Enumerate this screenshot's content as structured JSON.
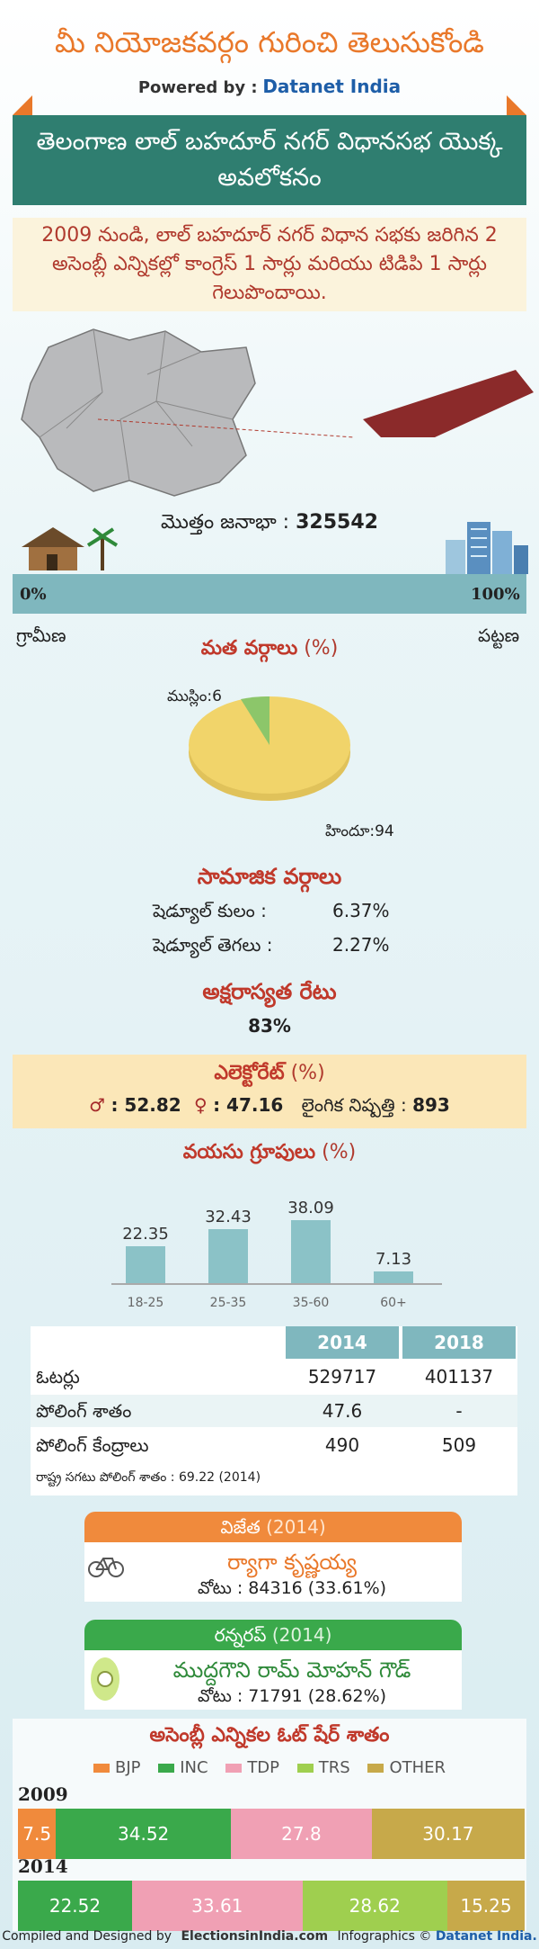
{
  "header": {
    "title": "మీ నియోజకవర్గం గురించి తెలుసుకోండి",
    "powered_by": "Powered by :",
    "brand": "Datanet India"
  },
  "banner": {
    "title": "తెలంగాణ లాల్ బహదూర్ నగర్ విధానసభ యొక్క అవలోకనం"
  },
  "summary": {
    "text": "2009 నుండి, లాల్ బహదూర్ నగర్ విధాన సభకు జరిగిన 2 అసెంబ్లీ ఎన్నికల్లో కాంగ్రెస్ 1 సార్లు మరియు టిడిపి 1 సార్లు గెలుపొందాయి."
  },
  "population": {
    "label": "మొత్తం జనాభా :",
    "value": "325542",
    "rural_pct": "0%",
    "urban_pct": "100%",
    "rural_label": "గ్రామీణ",
    "urban_label": "పట్టణ"
  },
  "religion": {
    "title": "మత వర్గాలు",
    "unit": "(%)",
    "muslim_label": "ముస్లిం:6",
    "hindu_label": "హిందూ:94",
    "muslim": 6,
    "hindu": 94
  },
  "social": {
    "title": "సామాజిక వర్గాలు",
    "sc_label": "షెడ్యూల్ కులం :",
    "sc_value": "6.37%",
    "st_label": "షెడ్యూల్ తెగలు :",
    "st_value": "2.27%"
  },
  "literacy": {
    "title": "అక్షరాస్యత రేటు",
    "value": "83%"
  },
  "electorate": {
    "title": "ఎలెక్టోరేట్",
    "unit": "(%)",
    "male": ": 52.82",
    "female": ": 47.16",
    "sex_ratio_label": "లైంగిక నిష్పత్తి :",
    "sex_ratio": "893"
  },
  "age": {
    "title": "వయసు గ్రూపులు",
    "unit": "(%)"
  },
  "chart_data": {
    "type": "bar",
    "categories": [
      "18-25",
      "25-35",
      "35-60",
      "60+"
    ],
    "values": [
      22.35,
      32.43,
      38.09,
      7.13
    ],
    "ylim": [
      0,
      40
    ]
  },
  "stats_table": {
    "headers": [
      "2014",
      "2018"
    ],
    "rows": [
      {
        "label": "ఓటర్లు",
        "v2014": "529717",
        "v2018": "401137"
      },
      {
        "label": "పోలింగ్ శాతం",
        "v2014": "47.6",
        "v2018": "-"
      },
      {
        "label": "పోలింగ్ కేంద్రాలు",
        "v2014": "490",
        "v2018": "509"
      }
    ],
    "note": "రాష్ట్ర సగటు పోలింగ్ శాతం : 69.22 (2014)"
  },
  "winner": {
    "title": "విజేత",
    "year": "(2014)",
    "name": "ర్యాగా కృష్ణయ్య",
    "votes": "వోటు : 84316 (33.61%)",
    "color": "#f08a3c"
  },
  "runnerup": {
    "title": "రన్నరప్",
    "year": "(2014)",
    "name": "ముద్దగౌని రామ్ మోహన్ గౌడ్",
    "votes": "వోటు : 71791 (28.62%)",
    "color": "#3aa94b"
  },
  "vote_share": {
    "title": "అసెంబ్లీ ఎన్నికల ఓట్ షేర్ శాతం",
    "legend": [
      {
        "name": "BJP",
        "color": "#f08a3c"
      },
      {
        "name": "INC",
        "color": "#3aa94b"
      },
      {
        "name": "TDP",
        "color": "#f0a0b4"
      },
      {
        "name": "TRS",
        "color": "#9fcf4f"
      },
      {
        "name": "OTHER",
        "color": "#c7a94a"
      }
    ],
    "rows": [
      {
        "year": "2009",
        "segments": [
          {
            "party": "BJP",
            "value": 7.5,
            "label": "7.5"
          },
          {
            "party": "INC",
            "value": 34.52,
            "label": "34.52"
          },
          {
            "party": "TDP",
            "value": 27.8,
            "label": "27.8"
          },
          {
            "party": "OTHER",
            "value": 30.17,
            "label": "30.17"
          }
        ]
      },
      {
        "year": "2014",
        "segments": [
          {
            "party": "INC",
            "value": 22.52,
            "label": "22.52"
          },
          {
            "party": "TDP",
            "value": 33.61,
            "label": "33.61"
          },
          {
            "party": "TRS",
            "value": 28.62,
            "label": "28.62"
          },
          {
            "party": "OTHER",
            "value": 15.25,
            "label": "15.25"
          }
        ]
      }
    ]
  },
  "footer": {
    "compiled": "Compiled and Designed by",
    "site": "ElectionsinIndia.com",
    "infographics": "Infographics ©",
    "brand": "Datanet India."
  }
}
